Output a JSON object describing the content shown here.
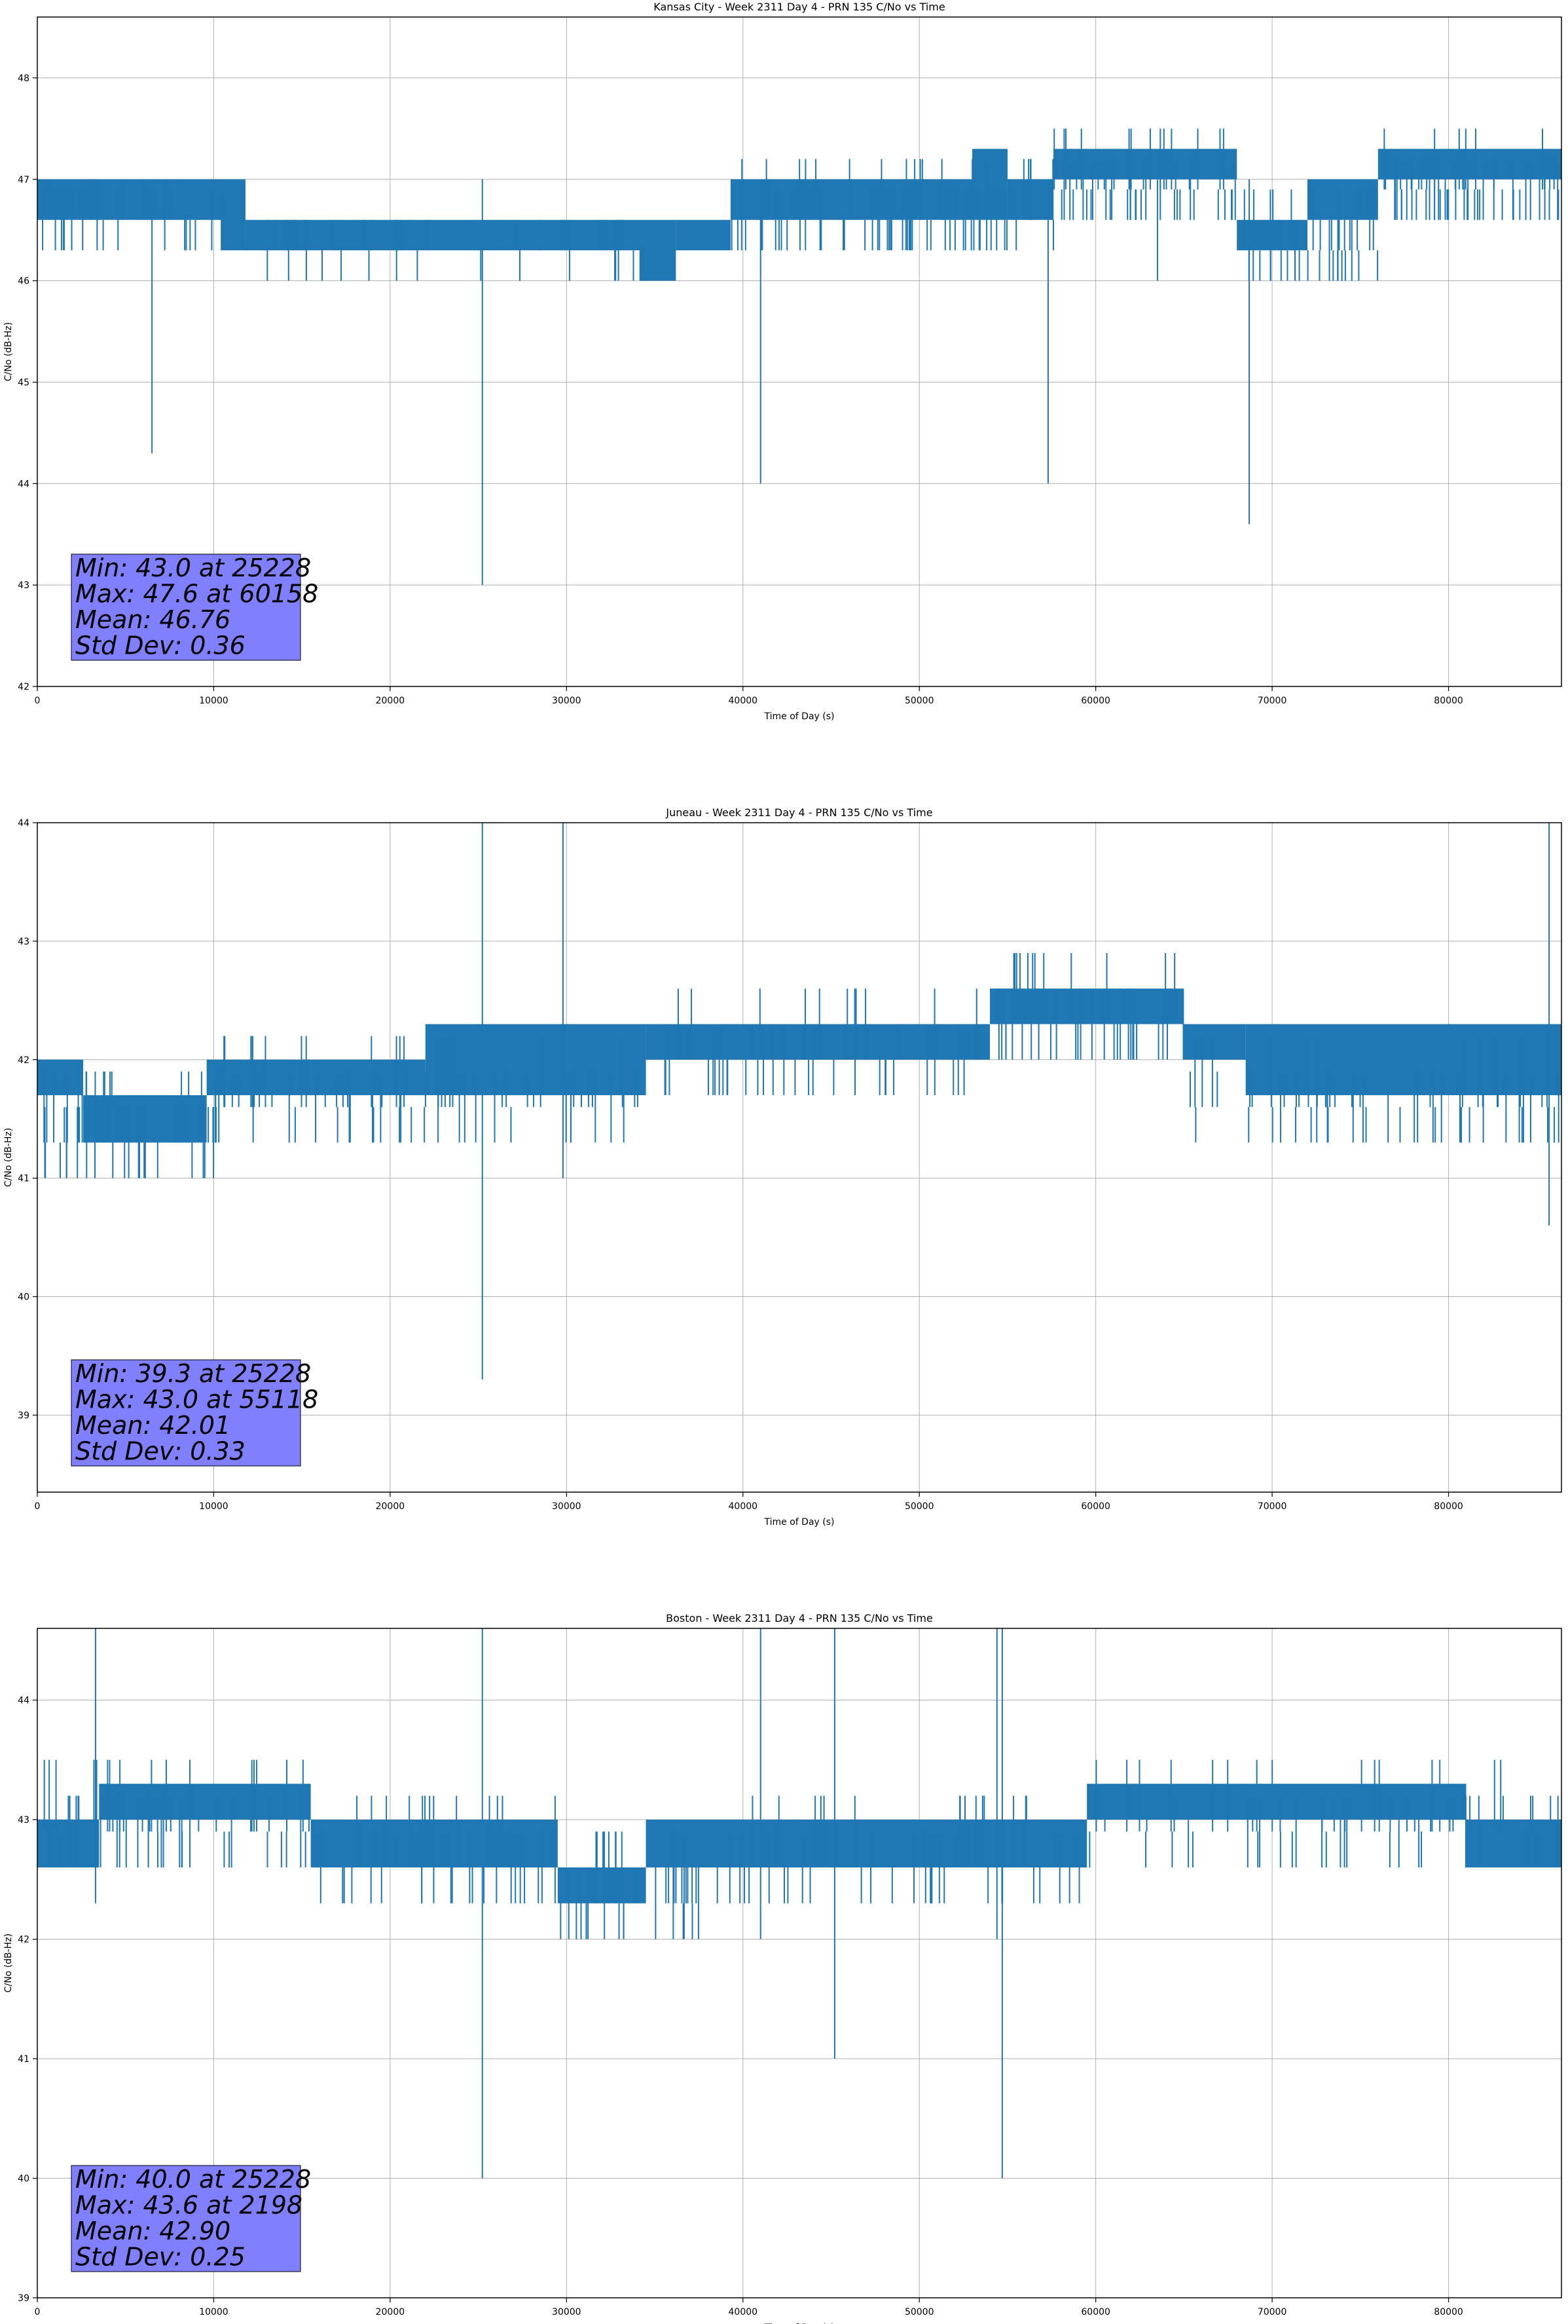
{
  "chart_data": [
    {
      "type": "line",
      "title": "Kansas City - Week 2311 Day 4 - PRN 135 C/No vs Time",
      "xlabel": "Time of Day (s)",
      "ylabel": "C/No (dB-Hz)",
      "xlim": [
        0,
        86400
      ],
      "ylim": [
        42.0,
        48.6
      ],
      "xticks": [
        0,
        10000,
        20000,
        30000,
        40000,
        50000,
        60000,
        70000,
        80000
      ],
      "yticks": [
        42,
        43,
        44,
        45,
        46,
        47,
        48
      ],
      "grid": true,
      "color": "#1f77b4",
      "stats": [
        "Min: 43.0 at 25228",
        "Max: 47.6 at 60158",
        "Mean: 46.76",
        "Std Dev: 0.36"
      ],
      "bands": [
        {
          "x0": 0,
          "x1": 10400,
          "low": 46.6,
          "high": 47.0
        },
        {
          "x0": 10400,
          "x1": 11800,
          "low": 46.3,
          "high": 47.0
        },
        {
          "x0": 11800,
          "x1": 34200,
          "low": 46.3,
          "high": 46.6
        },
        {
          "x0": 34200,
          "x1": 36200,
          "low": 46.0,
          "high": 46.6
        },
        {
          "x0": 36200,
          "x1": 39300,
          "low": 46.3,
          "high": 46.6
        },
        {
          "x0": 39300,
          "x1": 53000,
          "low": 46.6,
          "high": 47.0
        },
        {
          "x0": 53000,
          "x1": 55000,
          "low": 46.6,
          "high": 47.3
        },
        {
          "x0": 55000,
          "x1": 57600,
          "low": 46.6,
          "high": 47.0
        },
        {
          "x0": 57600,
          "x1": 68000,
          "low": 47.0,
          "high": 47.3
        },
        {
          "x0": 68000,
          "x1": 72000,
          "low": 46.3,
          "high": 46.6
        },
        {
          "x0": 72000,
          "x1": 76000,
          "low": 46.6,
          "high": 47.0
        },
        {
          "x0": 76000,
          "x1": 86400,
          "low": 47.0,
          "high": 47.3
        }
      ],
      "noise": [
        {
          "x0": 0,
          "x1": 10400,
          "low": 46.3,
          "high": 47.0,
          "count": 40
        },
        {
          "x0": 11800,
          "x1": 34200,
          "low": 46.0,
          "high": 46.6,
          "count": 40
        },
        {
          "x0": 39300,
          "x1": 57600,
          "low": 46.3,
          "high": 47.3,
          "count": 90
        },
        {
          "x0": 57600,
          "x1": 68000,
          "low": 46.6,
          "high": 47.6,
          "count": 50
        },
        {
          "x0": 68000,
          "x1": 76000,
          "low": 46.0,
          "high": 47.0,
          "count": 40
        },
        {
          "x0": 76000,
          "x1": 86400,
          "low": 46.6,
          "high": 47.6,
          "count": 55
        }
      ],
      "spikes": [
        {
          "x": 6500,
          "y": 44.3
        },
        {
          "x": 25228,
          "y": 43.0
        },
        {
          "x": 41000,
          "y": 44.0
        },
        {
          "x": 57300,
          "y": 44.0
        },
        {
          "x": 68700,
          "y": 43.6
        },
        {
          "x": 63500,
          "y": 46.0
        }
      ]
    },
    {
      "type": "line",
      "title": "Juneau - Week 2311 Day 4 - PRN 135 C/No vs Time",
      "xlabel": "Time of Day (s)",
      "ylabel": "C/No (dB-Hz)",
      "xlim": [
        0,
        86400
      ],
      "ylim": [
        38.35,
        44.0
      ],
      "xticks": [
        0,
        10000,
        20000,
        30000,
        40000,
        50000,
        60000,
        70000,
        80000
      ],
      "yticks": [
        39,
        40,
        41,
        42,
        43,
        44
      ],
      "grid": true,
      "color": "#1f77b4",
      "stats": [
        "Min: 39.3 at 25228",
        "Max: 43.0 at 55118",
        "Mean: 42.01",
        "Std Dev: 0.33"
      ],
      "bands": [
        {
          "x0": 0,
          "x1": 2600,
          "low": 41.7,
          "high": 42.0
        },
        {
          "x0": 2600,
          "x1": 9600,
          "low": 41.3,
          "high": 41.7
        },
        {
          "x0": 9600,
          "x1": 22000,
          "low": 41.7,
          "high": 42.0
        },
        {
          "x0": 22000,
          "x1": 34500,
          "low": 41.7,
          "high": 42.3
        },
        {
          "x0": 34500,
          "x1": 54000,
          "low": 42.0,
          "high": 42.3
        },
        {
          "x0": 54000,
          "x1": 65000,
          "low": 42.3,
          "high": 42.6
        },
        {
          "x0": 65000,
          "x1": 68500,
          "low": 42.0,
          "high": 42.3
        },
        {
          "x0": 68500,
          "x1": 86400,
          "low": 41.7,
          "high": 42.3
        }
      ],
      "noise": [
        {
          "x0": 0,
          "x1": 10000,
          "low": 41.0,
          "high": 42.3,
          "count": 45
        },
        {
          "x0": 10000,
          "x1": 34500,
          "low": 41.3,
          "high": 42.6,
          "count": 70
        },
        {
          "x0": 34500,
          "x1": 54000,
          "low": 41.7,
          "high": 42.6,
          "count": 50
        },
        {
          "x0": 54000,
          "x1": 65000,
          "low": 42.0,
          "high": 43.0,
          "count": 45
        },
        {
          "x0": 65000,
          "x1": 86400,
          "low": 41.3,
          "high": 42.6,
          "count": 60
        }
      ],
      "spikes": [
        {
          "x": 25228,
          "y": 39.3
        },
        {
          "x": 29800,
          "y": 41.0
        },
        {
          "x": 85700,
          "y": 40.6
        }
      ]
    },
    {
      "type": "line",
      "title": "Boston - Week 2311 Day 4 - PRN 135 C/No vs Time",
      "xlabel": "Time of Day (s)",
      "ylabel": "C/No (dB-Hz)",
      "xlim": [
        0,
        86400
      ],
      "ylim": [
        39.0,
        44.6
      ],
      "xticks": [
        0,
        10000,
        20000,
        30000,
        40000,
        50000,
        60000,
        70000,
        80000
      ],
      "yticks": [
        39,
        40,
        41,
        42,
        43,
        44
      ],
      "grid": true,
      "color": "#1f77b4",
      "stats": [
        "Min: 40.0 at 25228",
        "Max: 43.6 at 2198",
        "Mean: 42.90",
        "Std Dev: 0.25"
      ],
      "bands": [
        {
          "x0": 0,
          "x1": 3500,
          "low": 42.6,
          "high": 43.0
        },
        {
          "x0": 3500,
          "x1": 15500,
          "low": 43.0,
          "high": 43.3
        },
        {
          "x0": 15500,
          "x1": 29500,
          "low": 42.6,
          "high": 43.0
        },
        {
          "x0": 29500,
          "x1": 34500,
          "low": 42.3,
          "high": 42.6
        },
        {
          "x0": 34500,
          "x1": 59500,
          "low": 42.6,
          "high": 43.0
        },
        {
          "x0": 59500,
          "x1": 81000,
          "low": 43.0,
          "high": 43.3
        },
        {
          "x0": 81000,
          "x1": 86400,
          "low": 42.6,
          "high": 43.0
        }
      ],
      "noise": [
        {
          "x0": 0,
          "x1": 15500,
          "low": 42.6,
          "high": 43.6,
          "count": 55
        },
        {
          "x0": 15500,
          "x1": 29500,
          "low": 42.3,
          "high": 43.3,
          "count": 55
        },
        {
          "x0": 29500,
          "x1": 40000,
          "low": 42.0,
          "high": 43.0,
          "count": 40
        },
        {
          "x0": 40000,
          "x1": 59500,
          "low": 42.3,
          "high": 43.3,
          "count": 55
        },
        {
          "x0": 59500,
          "x1": 86400,
          "low": 42.6,
          "high": 43.6,
          "count": 60
        }
      ],
      "spikes": [
        {
          "x": 3300,
          "y": 42.3
        },
        {
          "x": 25228,
          "y": 40.0
        },
        {
          "x": 41000,
          "y": 42.0
        },
        {
          "x": 45200,
          "y": 41.0
        },
        {
          "x": 54700,
          "y": 40.0
        },
        {
          "x": 54400,
          "y": 42.0
        }
      ]
    }
  ]
}
